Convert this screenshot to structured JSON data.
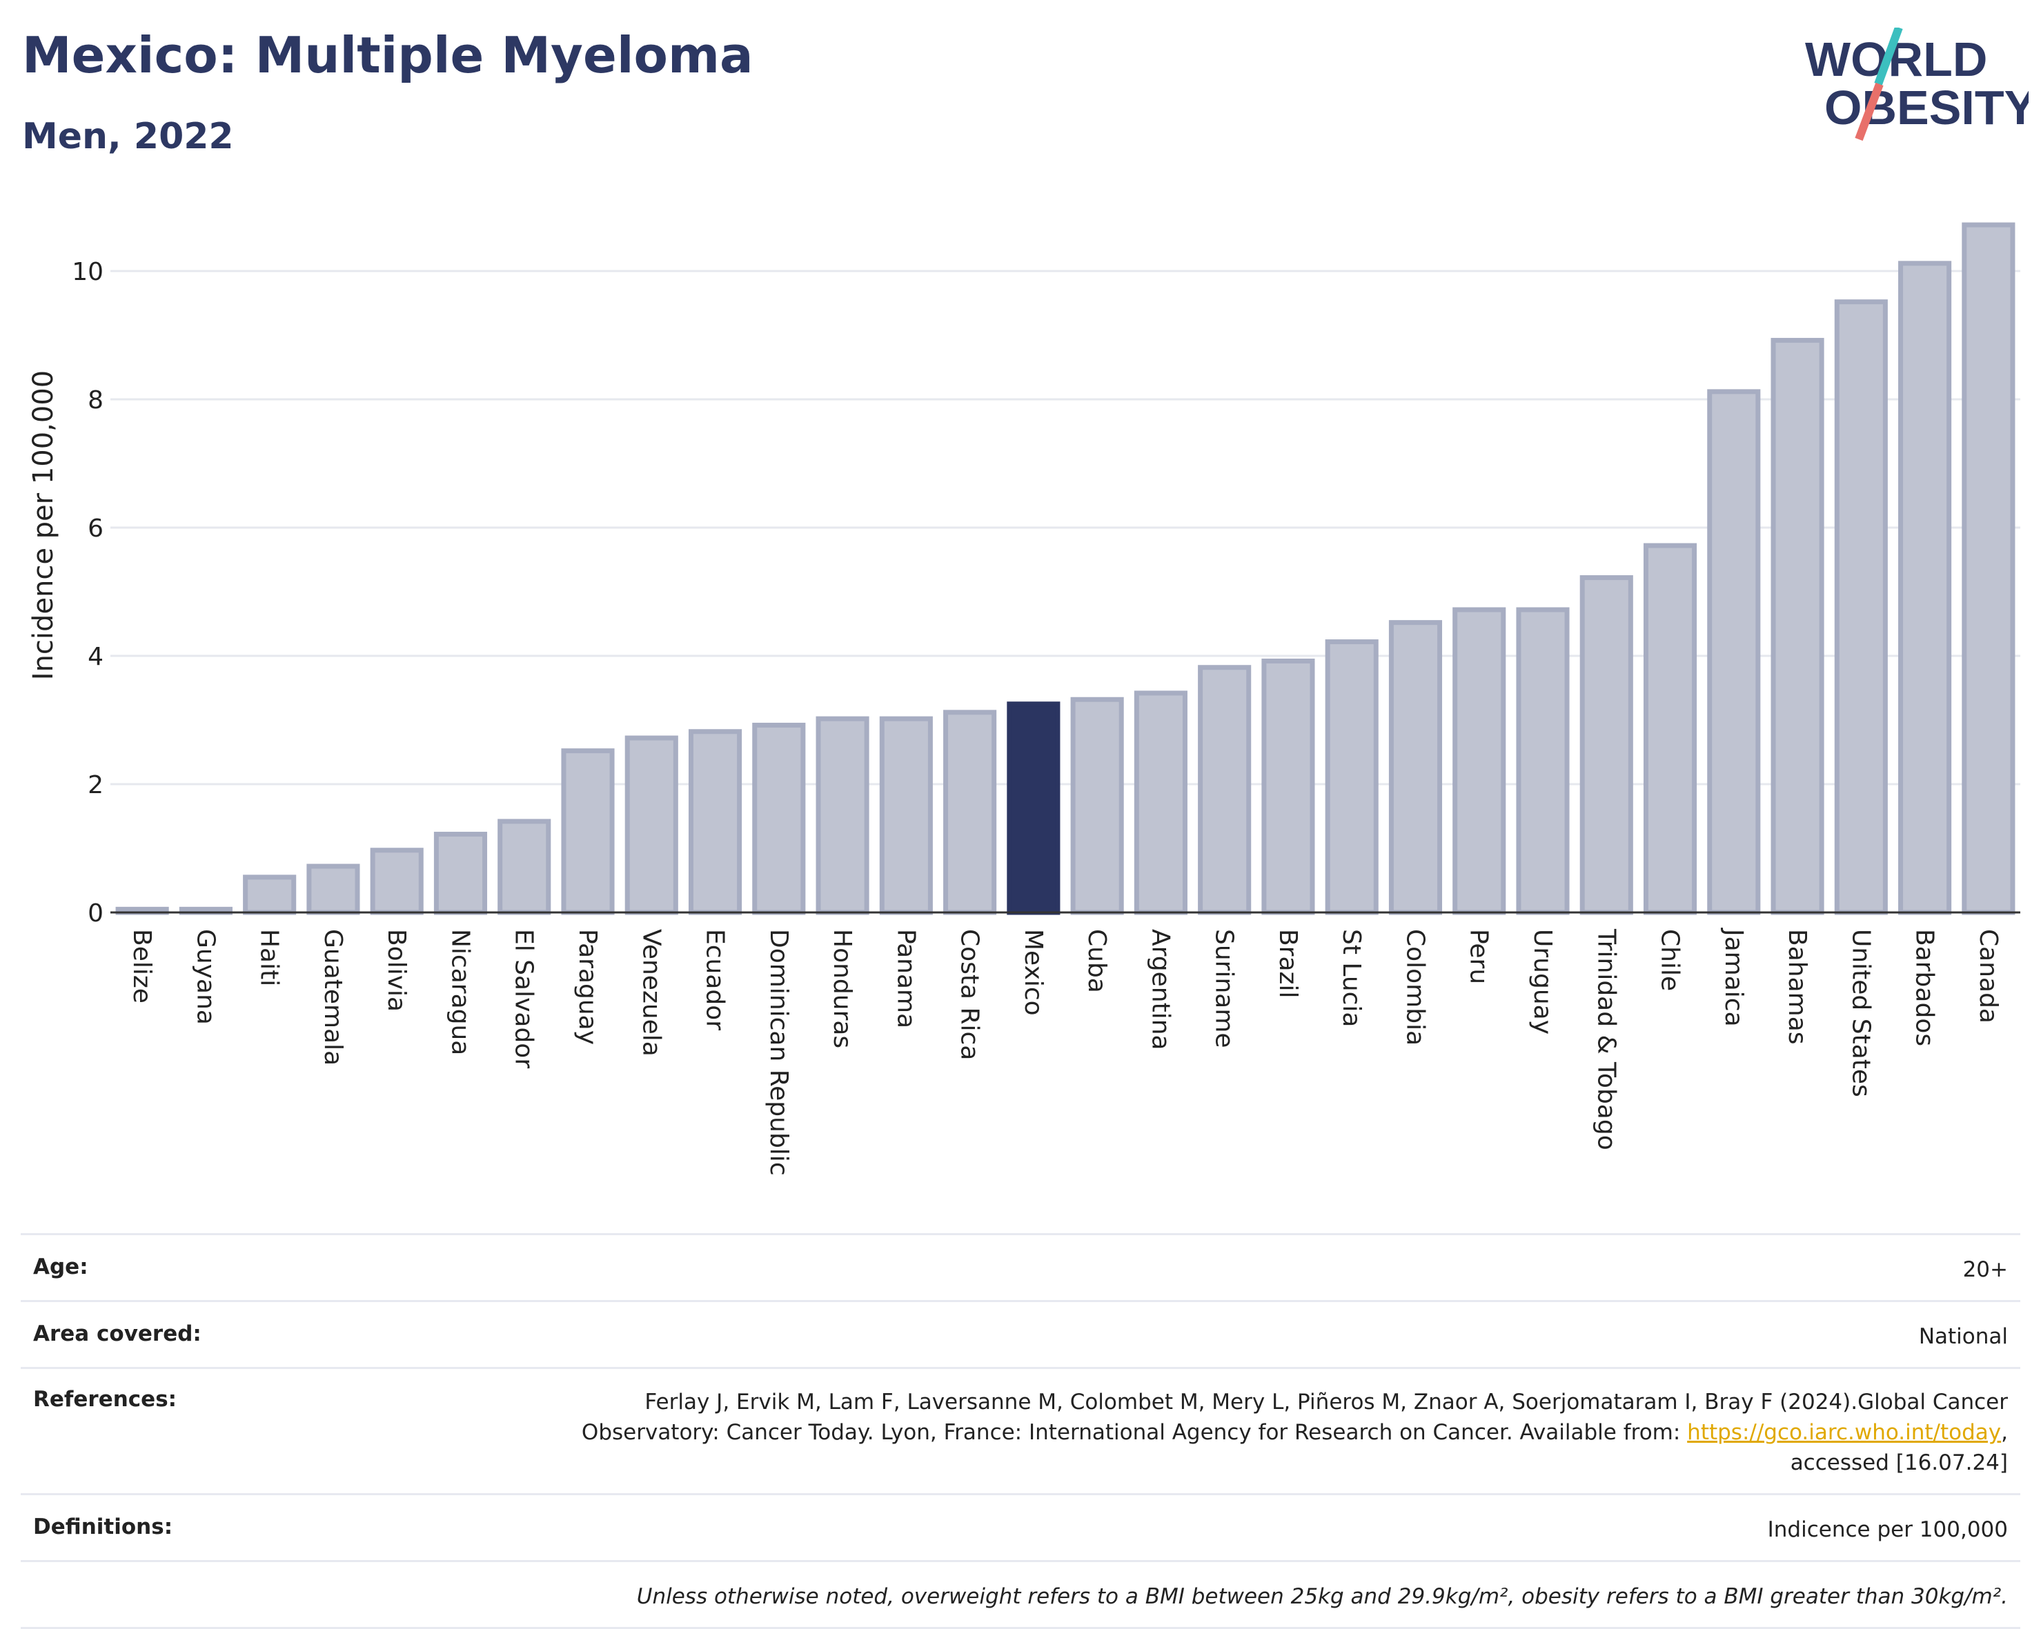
{
  "header": {
    "title": "Mexico: Multiple Myeloma",
    "subtitle": "Men, 2022",
    "logo_line1": "WORLD",
    "logo_line2": "OBESITY"
  },
  "colors": {
    "title": "#2d3863",
    "bar_default": "#bfc3d1",
    "bar_default_stroke": "#a7adc2",
    "bar_highlight": "#2b3561",
    "grid": "#e6e8ee",
    "link": "#e0a800",
    "logo_teal": "#3cbfbf",
    "logo_coral": "#e8706a"
  },
  "chart_data": {
    "type": "bar",
    "ylabel": "Incidence per 100,000",
    "xlabel": "",
    "ylim": [
      0,
      11
    ],
    "yticks": [
      0,
      2,
      4,
      6,
      8,
      10
    ],
    "grid": true,
    "highlight": "Mexico",
    "categories": [
      "Belize",
      "Guyana",
      "Haiti",
      "Guatemala",
      "Bolivia",
      "Nicaragua",
      "El Salvador",
      "Paraguay",
      "Venezuela",
      "Ecuador",
      "Dominican Republic",
      "Honduras",
      "Panama",
      "Costa Rica",
      "Mexico",
      "Cuba",
      "Argentina",
      "Suriname",
      "Brazil",
      "St Lucia",
      "Colombia",
      "Peru",
      "Uruguay",
      "Trinidad & Tobago",
      "Chile",
      "Jamaica",
      "Bahamas",
      "United States",
      "Barbados",
      "Canada"
    ],
    "values": [
      0.05,
      0.05,
      0.55,
      0.72,
      0.97,
      1.22,
      1.42,
      2.52,
      2.72,
      2.82,
      2.92,
      3.02,
      3.02,
      3.12,
      3.25,
      3.32,
      3.42,
      3.82,
      3.92,
      4.22,
      4.52,
      4.72,
      4.72,
      5.22,
      5.72,
      8.12,
      8.92,
      9.52,
      10.12,
      10.72
    ]
  },
  "meta": {
    "age_label": "Age:",
    "age_value": "20+",
    "area_label": "Area covered:",
    "area_value": "National",
    "refs_label": "References:",
    "refs_line1": "Ferlay J, Ervik M, Lam F, Laversanne M, Colombet M, Mery L, Piñeros M, Znaor A, Soerjomataram I, Bray F (2024).Global Cancer",
    "refs_line2_pre": "Observatory: Cancer Today. Lyon, France: International Agency for Research on Cancer. Available from: ",
    "refs_link": "https://gco.iarc.who.int/today",
    "refs_line2_post": ",",
    "refs_line3": "accessed [16.07.24]",
    "defs_label": "Definitions:",
    "defs_value": "Indicence per 100,000",
    "note": "Unless otherwise noted, overweight refers to a BMI between 25kg and 29.9kg/m², obesity refers to a BMI greater than 30kg/m²."
  }
}
